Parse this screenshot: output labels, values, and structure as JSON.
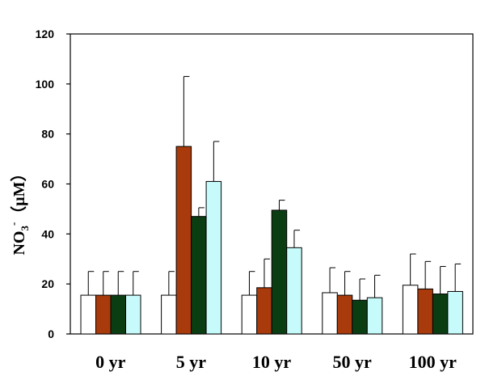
{
  "chart_data": {
    "type": "bar",
    "title": "",
    "xlabel": "",
    "ylabel": {
      "main": "NO",
      "subscript": "3",
      "superscript": "-",
      "unit": "（μM）"
    },
    "categories": [
      "0 yr",
      "5 yr",
      "10 yr",
      "50 yr",
      "100 yr"
    ],
    "ylim": [
      0,
      120
    ],
    "yticks": [
      "0",
      "20",
      "40",
      "60",
      "80",
      "100",
      "120"
    ],
    "grid": false,
    "legend": "none",
    "colors": [
      "#ffffff",
      "#a83a0c",
      "#0b3d12",
      "#c7fbfb"
    ],
    "bar_stroke": "#000000",
    "series": [
      {
        "values": [
          15.5,
          15.5,
          15.5,
          16.5,
          19.5
        ],
        "errors": [
          9.5,
          9.5,
          9.5,
          10,
          12.5
        ]
      },
      {
        "values": [
          15.5,
          75,
          18.5,
          15.5,
          18
        ],
        "errors": [
          9.5,
          28,
          11.5,
          9.5,
          11
        ]
      },
      {
        "values": [
          15.5,
          47,
          49.5,
          13.5,
          16
        ],
        "errors": [
          9.5,
          3.5,
          4,
          8.5,
          11
        ]
      },
      {
        "values": [
          15.5,
          61,
          34.5,
          14.5,
          17
        ],
        "errors": [
          9.5,
          16,
          7,
          9,
          11
        ]
      }
    ]
  }
}
